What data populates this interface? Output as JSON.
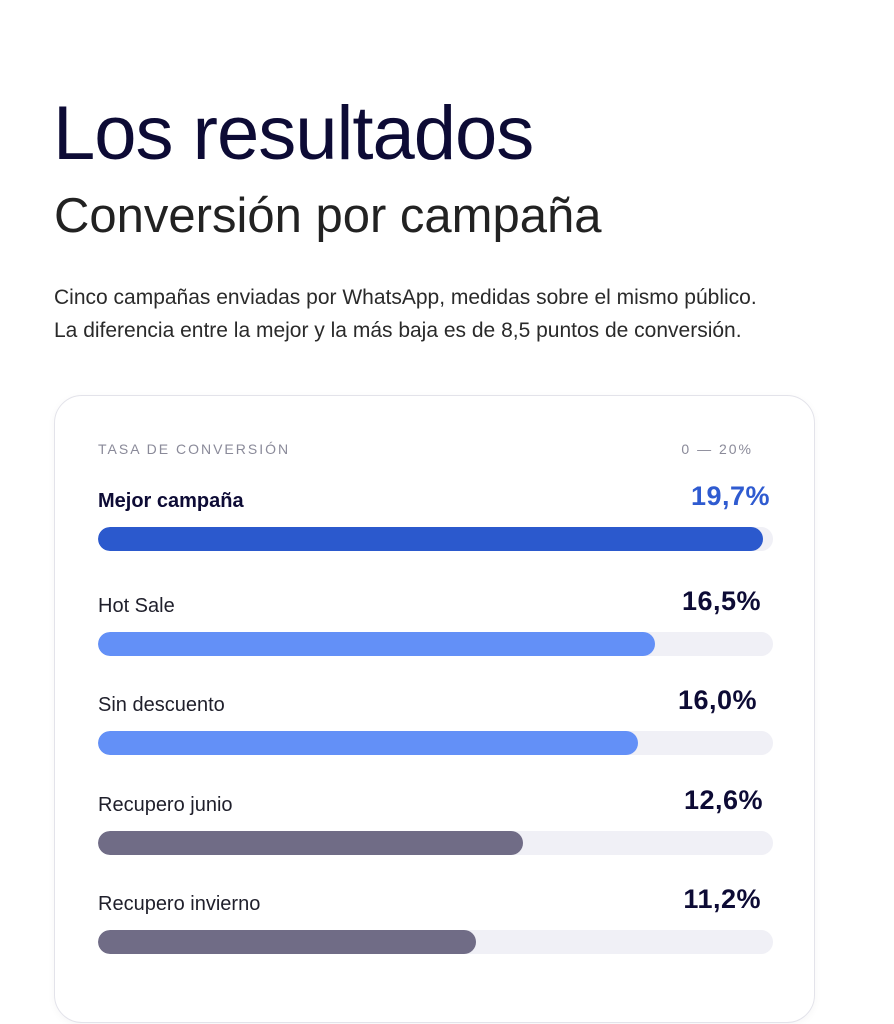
{
  "header": {
    "title": "Los resultados",
    "subtitle": "Conversión por campaña",
    "description_line1": "Cinco campañas enviadas por WhatsApp, medidas sobre el mismo público.",
    "description_line2": "La diferencia entre la mejor y la más baja es de 8,5 puntos de conversión."
  },
  "card": {
    "axis_title": "TASA DE CONVERSIÓN",
    "axis_range": "0 — 20%"
  },
  "colors": {
    "best": "#2b59cd",
    "mid": "#6390f7",
    "low": "#706c86",
    "track": "#f0f0f6",
    "best_text": "#2f5bd0"
  },
  "chart_data": {
    "type": "bar",
    "orientation": "horizontal",
    "xlim": [
      0,
      20
    ],
    "grid": false,
    "categories": [
      "Mejor campaña",
      "Hot Sale",
      "Sin descuento",
      "Recupero junio",
      "Recupero invierno"
    ],
    "values": [
      19.7,
      16.5,
      16.0,
      12.6,
      11.2
    ],
    "value_labels": [
      "19,7%",
      "16,5%",
      "16,0%",
      "12,6%",
      "11,2%"
    ],
    "bar_colors": [
      "#2b59cd",
      "#6390f7",
      "#6390f7",
      "#706c86",
      "#706c86"
    ]
  }
}
